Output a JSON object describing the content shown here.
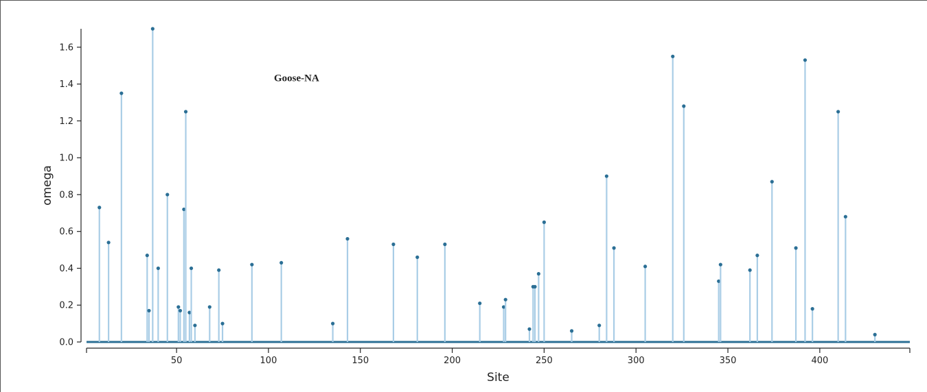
{
  "chart_data": {
    "type": "stem",
    "annotation": "Goose-NA",
    "xlabel": "Site",
    "ylabel": "omega",
    "xlim": [
      1,
      449
    ],
    "ylim": [
      0,
      1.7
    ],
    "x_ticks": [
      50,
      100,
      150,
      200,
      250,
      300,
      350,
      400
    ],
    "y_ticks": [
      0.0,
      0.2,
      0.4,
      0.6,
      0.8,
      1.0,
      1.2,
      1.4,
      1.6
    ],
    "y_tick_labels": [
      "0.0",
      "0.2",
      "0.4",
      "0.6",
      "0.8",
      "1.0",
      "1.2",
      "1.4",
      "1.6"
    ],
    "grid": false,
    "colors": {
      "stem": "#a9cde6",
      "marker": "#2b6f95",
      "baseline": "#2b6f95",
      "axis": "#222222"
    },
    "points": [
      {
        "x": 8,
        "y": 0.73
      },
      {
        "x": 13,
        "y": 0.54
      },
      {
        "x": 20,
        "y": 1.35
      },
      {
        "x": 34,
        "y": 0.47
      },
      {
        "x": 35,
        "y": 0.17
      },
      {
        "x": 37,
        "y": 1.7
      },
      {
        "x": 40,
        "y": 0.4
      },
      {
        "x": 45,
        "y": 0.8
      },
      {
        "x": 51,
        "y": 0.19
      },
      {
        "x": 52,
        "y": 0.17
      },
      {
        "x": 54,
        "y": 0.72
      },
      {
        "x": 55,
        "y": 1.25
      },
      {
        "x": 57,
        "y": 0.16
      },
      {
        "x": 58,
        "y": 0.4
      },
      {
        "x": 60,
        "y": 0.09
      },
      {
        "x": 68,
        "y": 0.19
      },
      {
        "x": 73,
        "y": 0.39
      },
      {
        "x": 75,
        "y": 0.1
      },
      {
        "x": 91,
        "y": 0.42
      },
      {
        "x": 107,
        "y": 0.43
      },
      {
        "x": 135,
        "y": 0.1
      },
      {
        "x": 143,
        "y": 0.56
      },
      {
        "x": 168,
        "y": 0.53
      },
      {
        "x": 181,
        "y": 0.46
      },
      {
        "x": 196,
        "y": 0.53
      },
      {
        "x": 215,
        "y": 0.21
      },
      {
        "x": 228,
        "y": 0.19
      },
      {
        "x": 229,
        "y": 0.23
      },
      {
        "x": 242,
        "y": 0.07
      },
      {
        "x": 244,
        "y": 0.3
      },
      {
        "x": 245,
        "y": 0.3
      },
      {
        "x": 247,
        "y": 0.37
      },
      {
        "x": 250,
        "y": 0.65
      },
      {
        "x": 265,
        "y": 0.06
      },
      {
        "x": 280,
        "y": 0.09
      },
      {
        "x": 284,
        "y": 0.9
      },
      {
        "x": 288,
        "y": 0.51
      },
      {
        "x": 305,
        "y": 0.41
      },
      {
        "x": 320,
        "y": 1.55
      },
      {
        "x": 326,
        "y": 1.28
      },
      {
        "x": 345,
        "y": 0.33
      },
      {
        "x": 346,
        "y": 0.42
      },
      {
        "x": 362,
        "y": 0.39
      },
      {
        "x": 366,
        "y": 0.47
      },
      {
        "x": 374,
        "y": 0.87
      },
      {
        "x": 387,
        "y": 0.51
      },
      {
        "x": 392,
        "y": 1.53
      },
      {
        "x": 396,
        "y": 0.18
      },
      {
        "x": 410,
        "y": 1.25
      },
      {
        "x": 414,
        "y": 0.68
      },
      {
        "x": 430,
        "y": 0.04
      }
    ]
  }
}
